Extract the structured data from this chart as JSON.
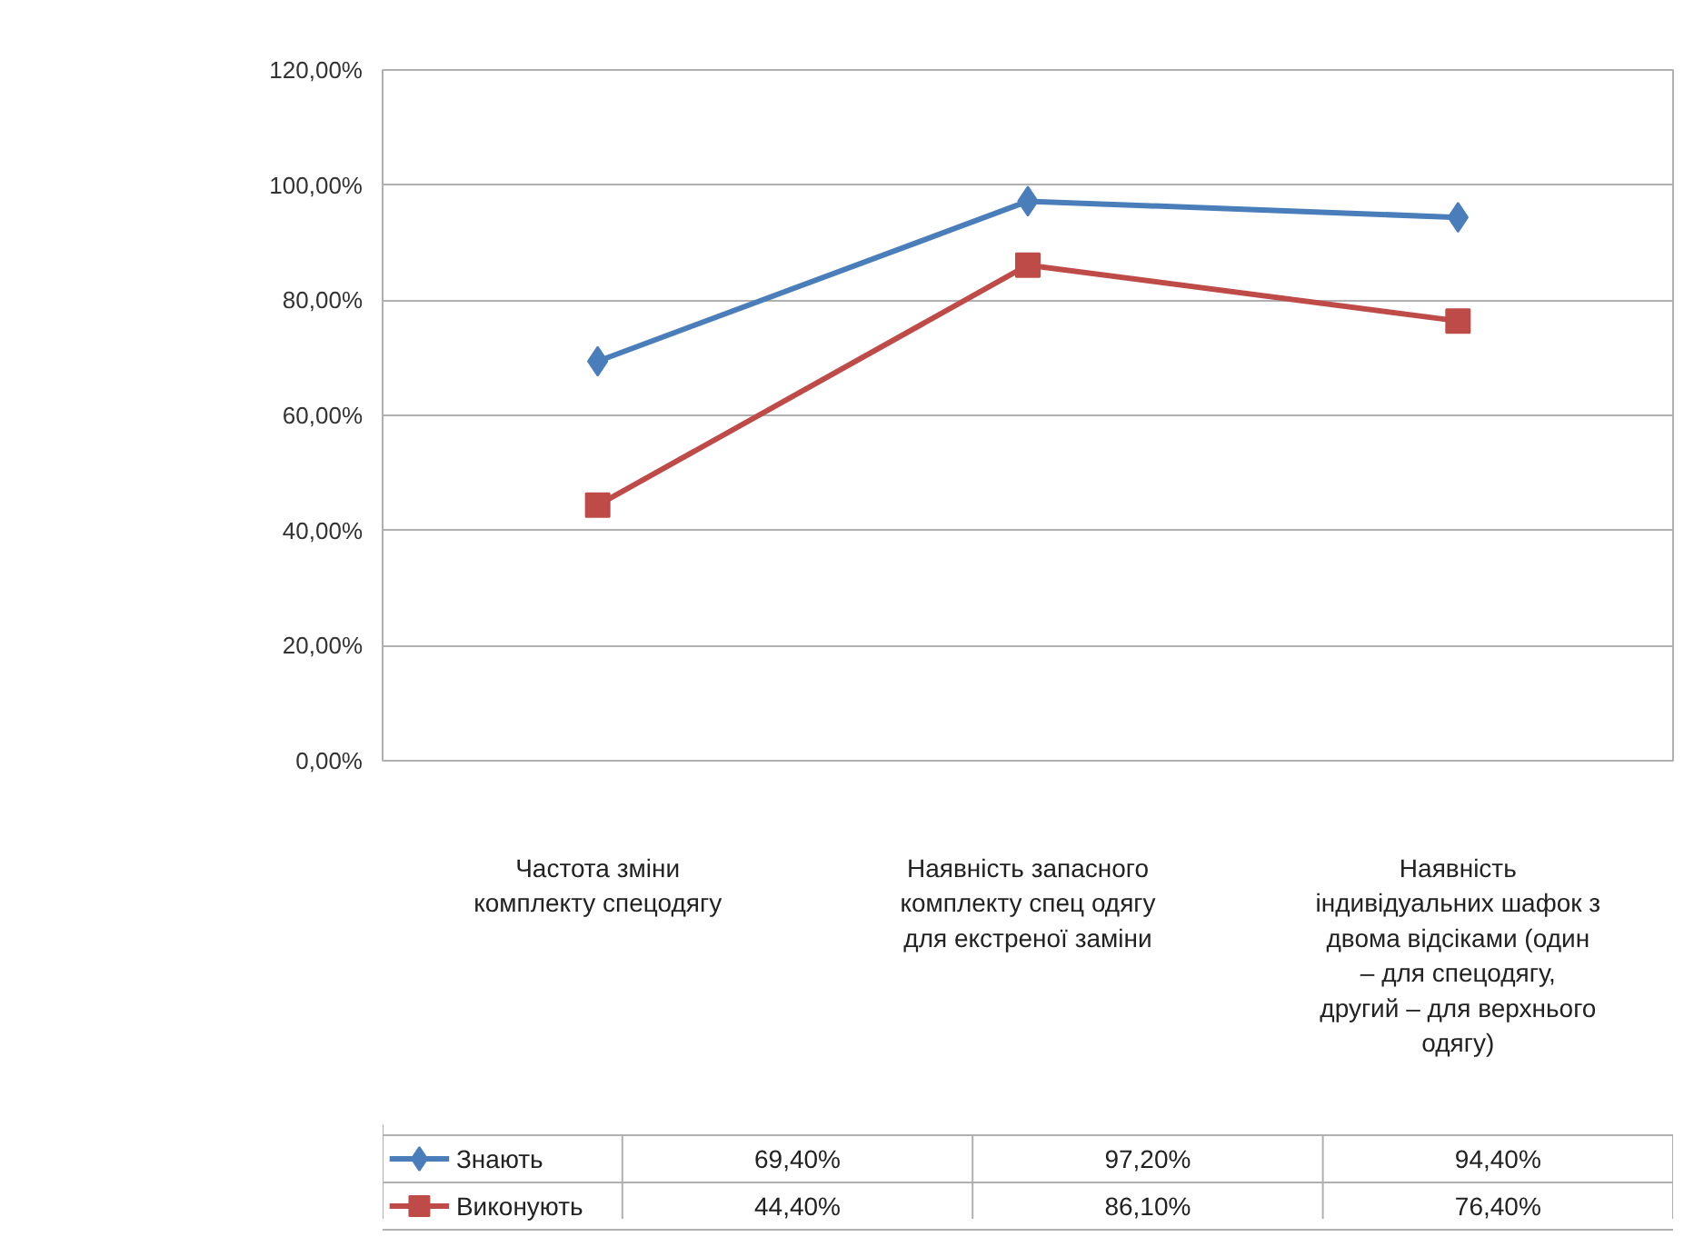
{
  "chart_data": {
    "type": "line",
    "categories": [
      "Частота зміни комплекту спецодягу",
      "Наявність запасного комплекту спец одягу для екстреної заміни",
      "Наявність індивідуальних шафок з двома відсіками (один – для спецодягу, другий – для верхнього одягу)"
    ],
    "series": [
      {
        "name": "Знають",
        "color": "#4a7ebb",
        "marker": "diamond",
        "values": [
          69.4,
          97.2,
          94.4
        ],
        "value_labels": [
          "69,40%",
          "97,20%",
          "94,40%"
        ]
      },
      {
        "name": "Виконують",
        "color": "#be4b48",
        "marker": "square",
        "values": [
          44.4,
          86.1,
          76.4
        ],
        "value_labels": [
          "44,40%",
          "86,10%",
          "76,40%"
        ]
      }
    ],
    "ylim": [
      0,
      120
    ],
    "yticks": [
      {
        "value": 0,
        "label": "0,00%"
      },
      {
        "value": 20,
        "label": "20,00%"
      },
      {
        "value": 40,
        "label": "40,00%"
      },
      {
        "value": 60,
        "label": "60,00%"
      },
      {
        "value": 80,
        "label": "80,00%"
      },
      {
        "value": 100,
        "label": "100,00%"
      },
      {
        "value": 120,
        "label": "120,00%"
      }
    ],
    "grid": "y",
    "legend": "bottom",
    "line_style": "solid"
  }
}
